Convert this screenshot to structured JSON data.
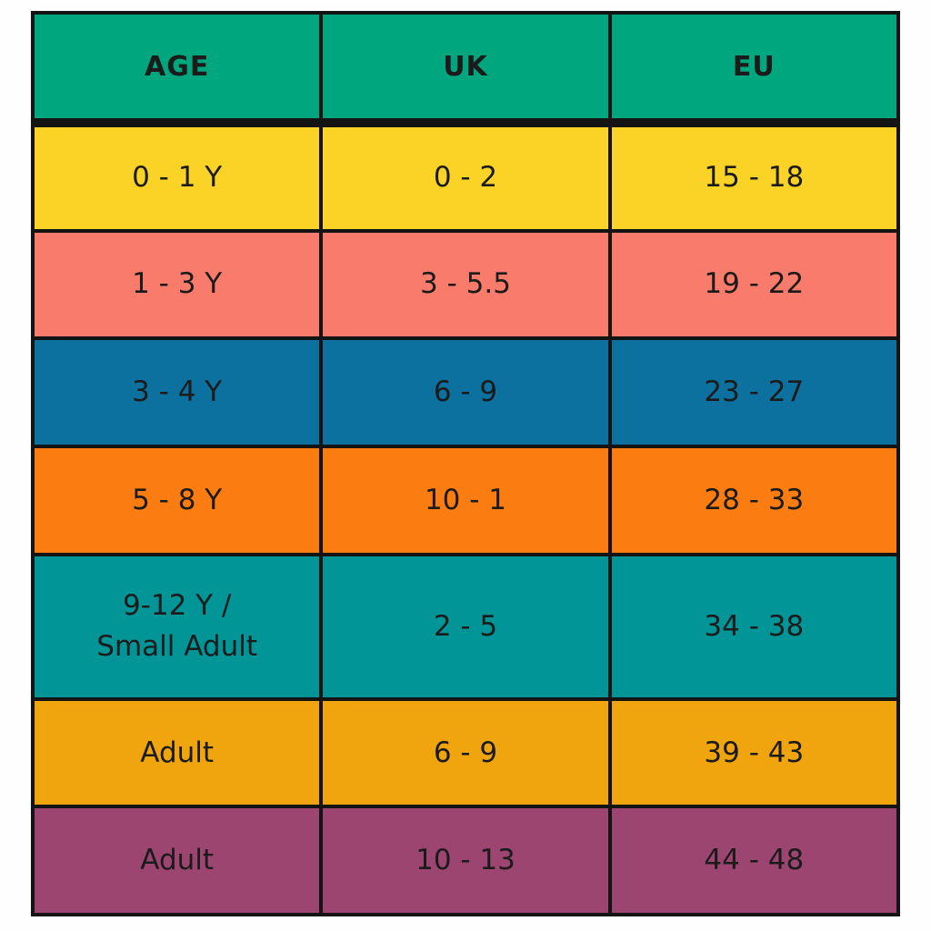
{
  "page": {
    "background": "#fefefe",
    "grid_color": "#141414",
    "text_color": "#1b1b1b"
  },
  "chart_data": {
    "type": "table",
    "columns": [
      "AGE",
      "UK",
      "EU"
    ],
    "header_color": "#00A67E",
    "rows": [
      {
        "age": "0 - 1 Y",
        "uk": "0 - 2",
        "eu": "15 - 18",
        "color": "#FBD327"
      },
      {
        "age": "1 - 3 Y",
        "uk": "3 - 5.5",
        "eu": "19 - 22",
        "color": "#F87B6C"
      },
      {
        "age": "3 - 4 Y",
        "uk": "6 - 9",
        "eu": "23 - 27",
        "color": "#0D71A0"
      },
      {
        "age": "5 - 8 Y",
        "uk": "10 - 1",
        "eu": "28 - 33",
        "color": "#FB7D11"
      },
      {
        "age": "9-12 Y /\nSmall Adult",
        "uk": "2 - 5",
        "eu": "34 - 38",
        "color": "#029597"
      },
      {
        "age": "Adult",
        "uk": "6 - 9",
        "eu": "39 - 43",
        "color": "#F0A50F"
      },
      {
        "age": "Adult",
        "uk": "10 - 13",
        "eu": "44 - 48",
        "color": "#9C4571"
      }
    ]
  }
}
